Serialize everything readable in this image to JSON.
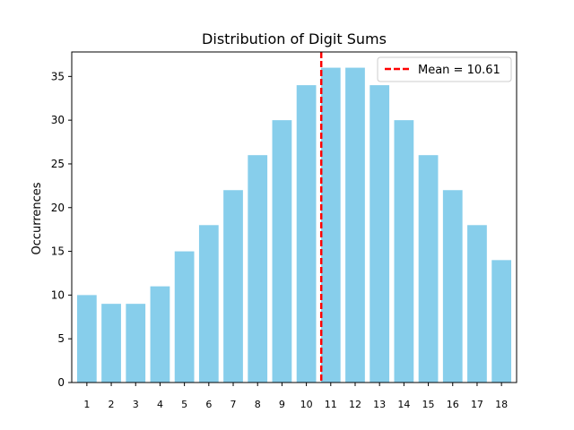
{
  "chart_data": {
    "type": "bar",
    "title": "Distribution of Digit Sums",
    "xlabel": "",
    "ylabel": "Occurrences",
    "categories": [
      "1",
      "2",
      "3",
      "4",
      "5",
      "6",
      "7",
      "8",
      "9",
      "10",
      "11",
      "12",
      "13",
      "14",
      "15",
      "16",
      "17",
      "18"
    ],
    "values": [
      10,
      9,
      9,
      11,
      15,
      18,
      22,
      26,
      30,
      34,
      36,
      36,
      34,
      30,
      26,
      22,
      18,
      14
    ],
    "ylim": [
      0,
      37.8
    ],
    "yticks": [
      0,
      5,
      10,
      15,
      20,
      25,
      30,
      35
    ],
    "bar_color": "#87CEEB",
    "mean": {
      "value": 10.61,
      "label": "Mean = 10.61",
      "color": "#FF0000",
      "style": "dashed"
    },
    "grid": false,
    "legend_position": "top-right"
  }
}
